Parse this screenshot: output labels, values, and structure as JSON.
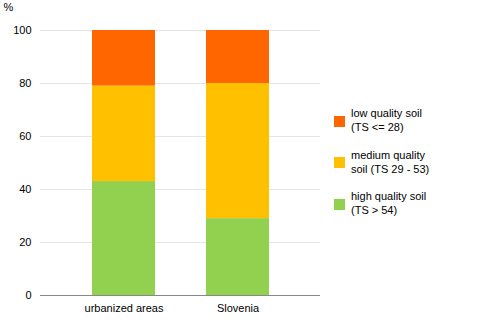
{
  "chart_data": {
    "type": "bar",
    "stacked": true,
    "categories": [
      "urbanized areas",
      "Slovenia"
    ],
    "series": [
      {
        "name": "high quality soil\n(TS > 54)",
        "color": "#92d050",
        "values": [
          43,
          29
        ]
      },
      {
        "name": "medium quality\nsoil (TS 29 - 53)",
        "color": "#ffc000",
        "values": [
          36,
          51
        ]
      },
      {
        "name": "low quality soil\n(TS <= 28)",
        "color": "#ff6600",
        "values": [
          21,
          20
        ]
      }
    ],
    "ylabel": "%",
    "ylim": [
      0,
      100
    ],
    "yticks": [
      0,
      20,
      40,
      60,
      80,
      100
    ],
    "grid": true,
    "legend": "right"
  }
}
